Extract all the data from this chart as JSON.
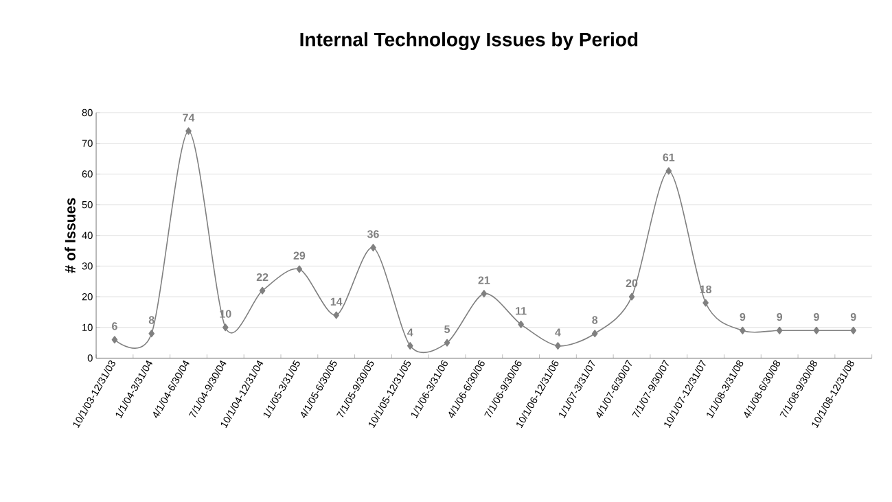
{
  "chart_data": {
    "type": "line",
    "title": "Internal Technology Issues by Period",
    "ylabel": "# of Issues",
    "categories": [
      "10/1/03-12/31/03",
      "1/1/04-3/31/04",
      "4/1/04-6/30/04",
      "7/1/04-9/30/04",
      "10/1/04-12/31/04",
      "1/1/05-3/31/05",
      "4/1/05-6/30/05",
      "7/1/05-9/30/05",
      "10/1/05-12/31/05",
      "1/1/06-3/31/06",
      "4/1/06-6/30/06",
      "7/1/06-9/30/06",
      "10/1/06-12/31/06",
      "1/1/07-3/31/07",
      "4/1/07-6/30/07",
      "7/1/07-9/30/07",
      "10/1/07-12/31/07",
      "1/1/08-3/31/08",
      "4/1/08-6/30/08",
      "7/1/08-9/30/08",
      "10/1/08-12/31/08"
    ],
    "series": [
      {
        "color": "#808080",
        "values": [
          6,
          8,
          74,
          10,
          22,
          29,
          14,
          36,
          4,
          5,
          21,
          11,
          4,
          8,
          20,
          61,
          18,
          9,
          9,
          9,
          9
        ]
      }
    ],
    "ylim": [
      0,
      80
    ],
    "yticks": [
      0,
      10,
      20,
      30,
      40,
      50,
      60,
      70,
      80
    ],
    "grid": "y",
    "marker": "diamond",
    "line_style": "solid",
    "data_labels": true
  }
}
